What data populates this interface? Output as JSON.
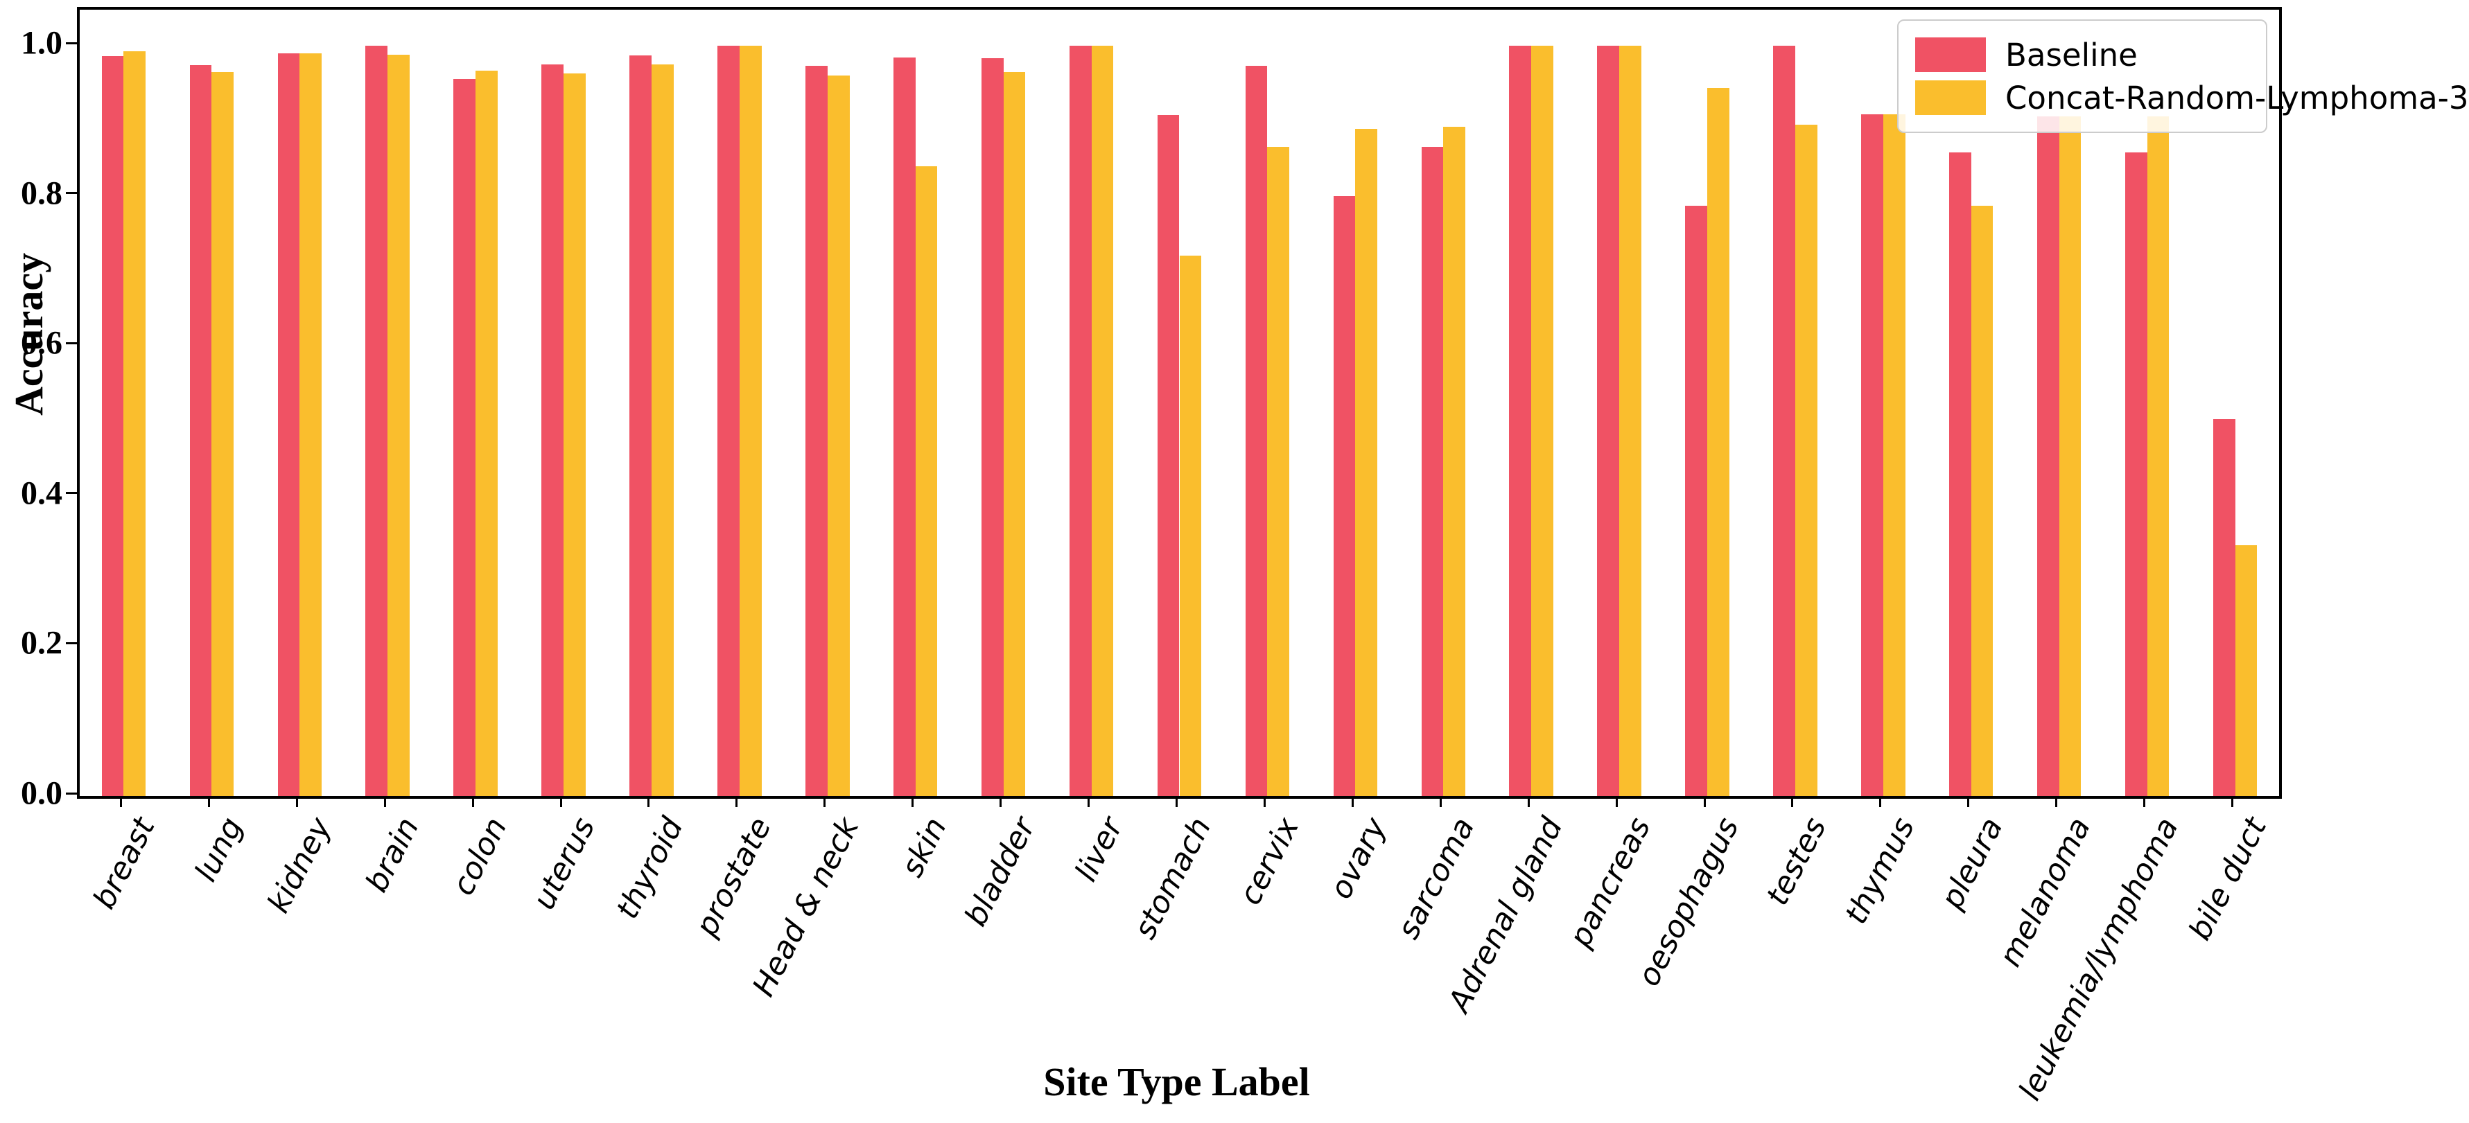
{
  "chart_data": {
    "type": "bar",
    "title": "",
    "xlabel": "Site Type Label",
    "ylabel": "Accuracy",
    "ylim": [
      0,
      1.048
    ],
    "yticks": [
      "0.0",
      "0.2",
      "0.4",
      "0.6",
      "0.8",
      "1.0"
    ],
    "ytick_values": [
      0.0,
      0.2,
      0.4,
      0.6,
      0.8,
      1.0
    ],
    "grid": false,
    "legend_position": "upper right",
    "categories": [
      "breast",
      "lung",
      "kidney",
      "brain",
      "colon",
      "uterus",
      "thyroid",
      "prostate",
      "Head & neck",
      "skin",
      "bladder",
      "liver",
      "stomach",
      "cervix",
      "ovary",
      "sarcoma",
      "Adrenal gland",
      "pancreas",
      "oesophagus",
      "testes",
      "thymus",
      "pleura",
      "melanoma",
      "leukemia/lymphoma",
      "bile duct"
    ],
    "series": [
      {
        "name": "Baseline",
        "color": "#F05264",
        "values": [
          0.986,
          0.974,
          0.99,
          1.0,
          0.956,
          0.975,
          0.987,
          1.0,
          0.973,
          0.984,
          0.983,
          1.0,
          0.908,
          0.973,
          0.8,
          0.865,
          1.0,
          1.0,
          0.787,
          1.0,
          0.909,
          0.858,
          0.906,
          0.858,
          0.502
        ]
      },
      {
        "name": "Concat-Random-Lymphoma-3",
        "color": "#FABE2D",
        "values": [
          0.993,
          0.965,
          0.99,
          0.988,
          0.967,
          0.963,
          0.975,
          1.0,
          0.96,
          0.839,
          0.965,
          1.0,
          0.72,
          0.865,
          0.889,
          0.892,
          1.0,
          1.0,
          0.944,
          0.895,
          0.909,
          0.787,
          0.906,
          0.906,
          0.334
        ]
      }
    ]
  }
}
